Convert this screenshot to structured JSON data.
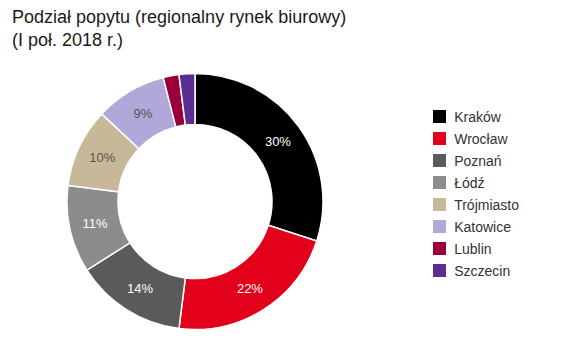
{
  "chart_data": {
    "type": "pie",
    "title": "Podział popytu (regionalny rynek biurowy)",
    "subtitle": "(I poł. 2018 r.)",
    "categories": [
      "Kraków",
      "Wrocław",
      "Poznań",
      "Łódź",
      "Trójmiasto",
      "Katowice",
      "Lublin",
      "Szczecin"
    ],
    "values": [
      30,
      22,
      14,
      11,
      10,
      9,
      2,
      2
    ],
    "value_labels": [
      "30%",
      "22%",
      "14%",
      "11%",
      "10%",
      "9%",
      null,
      null
    ],
    "colors": [
      "#000000",
      "#e2001a",
      "#5a5a5a",
      "#8c8c8c",
      "#c8b89a",
      "#b0a8d8",
      "#99003a",
      "#5b2d8e"
    ],
    "data_labels": true,
    "legend": "right"
  }
}
